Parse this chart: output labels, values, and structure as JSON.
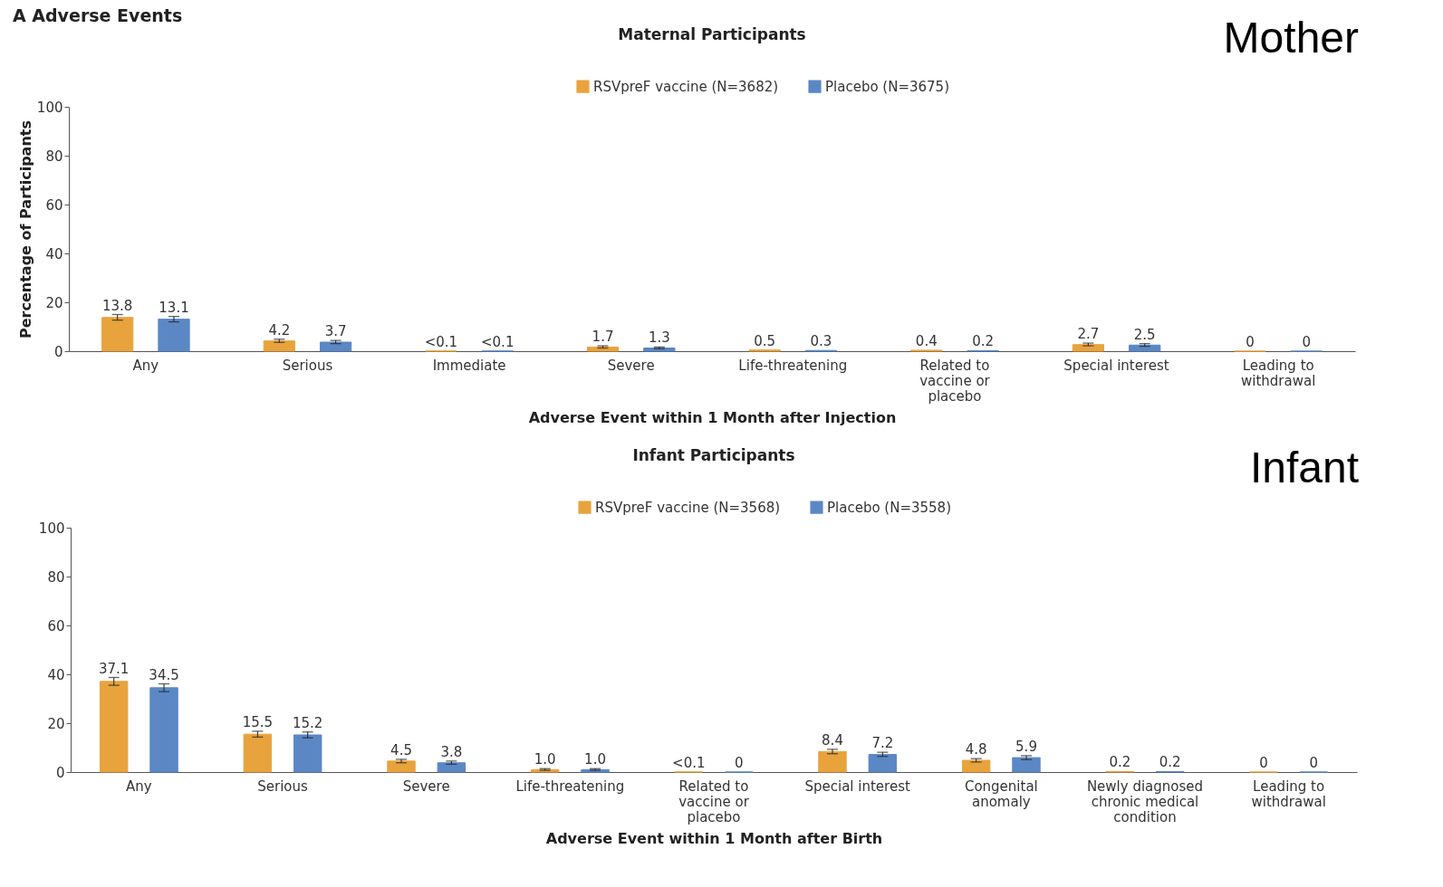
{
  "chart_data": [
    {
      "type": "bar",
      "title": "Maternal Participants",
      "xlabel": "Adverse Event within 1 Month after Injection",
      "ylabel": "Percentage of Participants",
      "annotations": [
        "A  Adverse Events",
        "Mother"
      ],
      "categories": [
        "Any",
        "Serious",
        "Immediate",
        "Severe",
        "Life-threatening",
        "Related to vaccine or placebo",
        "Special interest",
        "Leading to withdrawal"
      ],
      "series": [
        {
          "name": "RSVpreF vaccine (N=3682)",
          "color": "#e8a33d",
          "values": [
            13.8,
            4.2,
            0.05,
            1.7,
            0.5,
            0.4,
            2.7,
            0
          ],
          "errors": [
            [
              12.7,
              15.0
            ],
            [
              3.6,
              4.9
            ],
            null,
            [
              1.3,
              2.2
            ],
            null,
            null,
            [
              2.2,
              3.3
            ],
            null
          ],
          "value_labels": [
            "13.8",
            "4.2",
            "<0.1",
            "1.7",
            "0.5",
            "0.4",
            "2.7",
            "0"
          ]
        },
        {
          "name": "Placebo (N=3675)",
          "color": "#5b87c5",
          "values": [
            13.1,
            3.7,
            0.05,
            1.3,
            0.3,
            0.2,
            2.5,
            0
          ],
          "errors": [
            [
              12.0,
              14.2
            ],
            [
              3.1,
              4.4
            ],
            null,
            [
              1.0,
              1.7
            ],
            null,
            null,
            [
              2.0,
              3.1
            ],
            null
          ],
          "value_labels": [
            "13.1",
            "3.7",
            "<0.1",
            "1.3",
            "0.3",
            "0.2",
            "2.5",
            "0"
          ]
        }
      ],
      "ylim": [
        0,
        100
      ],
      "yticks": [
        0,
        20,
        40,
        60,
        80,
        100
      ],
      "legend": "top"
    },
    {
      "type": "bar",
      "title": "Infant Participants",
      "xlabel": "Adverse Event within 1 Month after Birth",
      "annotations": [
        "Infant"
      ],
      "categories": [
        "Any",
        "Serious",
        "Severe",
        "Life-threatening",
        "Related to vaccine or placebo",
        "Special interest",
        "Congenital anomaly",
        "Newly diagnosed chronic medical condition",
        "Leading to withdrawal"
      ],
      "series": [
        {
          "name": "RSVpreF vaccine (N=3568)",
          "color": "#e8a33d",
          "values": [
            37.1,
            15.5,
            4.5,
            1.0,
            0.05,
            8.4,
            4.8,
            0.2,
            0
          ],
          "errors": [
            [
              35.5,
              38.7
            ],
            [
              14.3,
              16.7
            ],
            [
              3.8,
              5.2
            ],
            [
              0.7,
              1.4
            ],
            null,
            [
              7.5,
              9.3
            ],
            [
              4.1,
              5.5
            ],
            null,
            null
          ],
          "value_labels": [
            "37.1",
            "15.5",
            "4.5",
            "1.0",
            "<0.1",
            "8.4",
            "4.8",
            "0.2",
            "0"
          ]
        },
        {
          "name": "Placebo (N=3558)",
          "color": "#5b87c5",
          "values": [
            34.5,
            15.2,
            3.8,
            1.0,
            0,
            7.2,
            5.9,
            0.2,
            0
          ],
          "errors": [
            [
              32.9,
              36.1
            ],
            [
              14.0,
              16.4
            ],
            [
              3.2,
              4.5
            ],
            [
              0.7,
              1.4
            ],
            null,
            [
              6.4,
              8.1
            ],
            [
              5.1,
              6.7
            ],
            null,
            null
          ],
          "value_labels": [
            "34.5",
            "15.2",
            "3.8",
            "1.0",
            "0",
            "7.2",
            "5.9",
            "0.2",
            "0"
          ]
        }
      ],
      "ylim": [
        0,
        100
      ],
      "yticks": [
        0,
        20,
        40,
        60,
        80,
        100
      ],
      "legend": "top"
    }
  ]
}
